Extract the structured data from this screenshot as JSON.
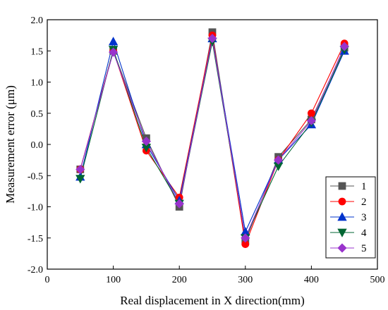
{
  "chart_data": {
    "type": "line",
    "title": "",
    "xlabel": "Real displacement in X direction(mm)",
    "ylabel": "Measurement error (μm)",
    "xlim": [
      0,
      500
    ],
    "ylim": [
      -2.0,
      2.0
    ],
    "x_ticks": [
      0,
      100,
      200,
      300,
      400,
      500
    ],
    "x_tick_labels": [
      "0",
      "100",
      "200",
      "300",
      "400",
      "500"
    ],
    "y_ticks": [
      2.0,
      1.5,
      1.0,
      0.5,
      0.0,
      -0.5,
      -1.0,
      -1.5,
      -2.0
    ],
    "y_tick_labels": [
      "2.0",
      "1.5",
      "1.0",
      "0.5",
      "0.0",
      "-0.5",
      "-1.0",
      "-1.5",
      "-2.0"
    ],
    "grid": false,
    "legend_position": "bottom-right",
    "x": [
      50,
      100,
      150,
      200,
      250,
      300,
      350,
      400,
      450
    ],
    "series": [
      {
        "name": "1",
        "color": "#555555",
        "marker": "square",
        "values": [
          -0.4,
          1.5,
          0.1,
          -1.0,
          1.8,
          -1.55,
          -0.2,
          0.4,
          1.55
        ]
      },
      {
        "name": "2",
        "color": "#ff0000",
        "marker": "circle",
        "values": [
          -0.4,
          1.5,
          -0.1,
          -0.85,
          1.75,
          -1.6,
          -0.25,
          0.5,
          1.62
        ]
      },
      {
        "name": "3",
        "color": "#0033cc",
        "marker": "triangle-up",
        "values": [
          -0.52,
          1.65,
          0.0,
          -0.9,
          1.7,
          -1.4,
          -0.25,
          0.32,
          1.5
        ]
      },
      {
        "name": "4",
        "color": "#006633",
        "marker": "triangle-down",
        "values": [
          -0.55,
          1.52,
          -0.05,
          -0.95,
          1.65,
          -1.5,
          -0.35,
          0.35,
          1.52
        ]
      },
      {
        "name": "5",
        "color": "#9933cc",
        "marker": "diamond",
        "values": [
          -0.4,
          1.48,
          0.05,
          -0.95,
          1.7,
          -1.5,
          -0.25,
          0.38,
          1.57
        ]
      }
    ]
  }
}
